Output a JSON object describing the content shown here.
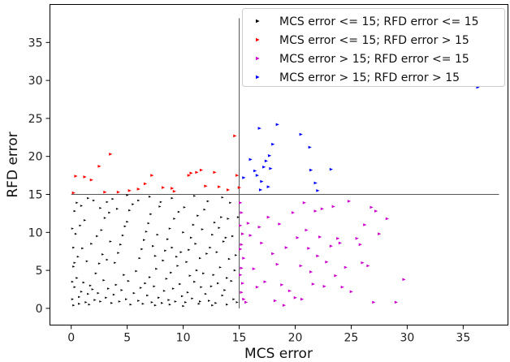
{
  "chart_data": {
    "type": "scatter",
    "title": "",
    "xlabel": "MCS error",
    "ylabel": "RFD error",
    "xlim": [
      -1.9,
      39.0
    ],
    "ylim": [
      -2.2,
      40.0
    ],
    "xticks": [
      "0",
      "5",
      "10",
      "15",
      "20",
      "25",
      "30",
      "35"
    ],
    "yticks": [
      "0",
      "5",
      "10",
      "15",
      "20",
      "25",
      "30",
      "35"
    ],
    "threshold_lines": {
      "vertical": {
        "x": 15,
        "y_range": [
          0,
          38.2
        ]
      },
      "horizontal": {
        "y": 15,
        "x_range": [
          0,
          38.2
        ]
      }
    },
    "grid": false,
    "legend_position": "top-right",
    "series": [
      {
        "name": "MCS error <= 15; RFD error <= 15",
        "color": "#000000",
        "dense": true,
        "points": [
          [
            0.1,
            1.2
          ],
          [
            0.3,
            2.8
          ],
          [
            0.5,
            4.0
          ],
          [
            0.7,
            1.5
          ],
          [
            0.9,
            2.2
          ],
          [
            1.1,
            3.4
          ],
          [
            1.3,
            0.8
          ],
          [
            1.5,
            1.9
          ],
          [
            1.7,
            3.0
          ],
          [
            1.9,
            2.5
          ],
          [
            0.2,
            5.5
          ],
          [
            0.6,
            6.8
          ],
          [
            1.0,
            7.9
          ],
          [
            1.4,
            6.2
          ],
          [
            1.8,
            8.5
          ],
          [
            0.4,
            9.8
          ],
          [
            0.8,
            10.9
          ],
          [
            1.2,
            11.6
          ],
          [
            0.3,
            12.8
          ],
          [
            0.9,
            13.5
          ],
          [
            0.2,
            0.4
          ],
          [
            0.7,
            0.6
          ],
          [
            1.6,
            0.5
          ],
          [
            2.1,
            1.1
          ],
          [
            2.4,
            2.0
          ],
          [
            2.6,
            0.9
          ],
          [
            2.9,
            3.7
          ],
          [
            3.1,
            1.4
          ],
          [
            3.3,
            2.6
          ],
          [
            3.6,
            0.7
          ],
          [
            2.2,
            4.6
          ],
          [
            2.5,
            5.9
          ],
          [
            2.8,
            7.1
          ],
          [
            3.2,
            6.4
          ],
          [
            3.5,
            8.8
          ],
          [
            2.3,
            9.5
          ],
          [
            2.7,
            10.3
          ],
          [
            3.0,
            11.9
          ],
          [
            3.4,
            12.6
          ],
          [
            2.0,
            14.2
          ],
          [
            3.8,
            1.8
          ],
          [
            4.0,
            3.1
          ],
          [
            4.3,
            0.9
          ],
          [
            4.5,
            2.4
          ],
          [
            4.7,
            4.4
          ],
          [
            4.9,
            1.2
          ],
          [
            5.1,
            3.6
          ],
          [
            5.3,
            0.5
          ],
          [
            5.6,
            2.0
          ],
          [
            5.8,
            4.9
          ],
          [
            3.9,
            6.0
          ],
          [
            4.2,
            7.3
          ],
          [
            4.4,
            8.4
          ],
          [
            4.6,
            9.6
          ],
          [
            4.8,
            10.8
          ],
          [
            5.0,
            11.4
          ],
          [
            5.2,
            12.9
          ],
          [
            5.5,
            13.7
          ],
          [
            3.7,
            14.4
          ],
          [
            4.1,
            13.1
          ],
          [
            6.0,
            1.0
          ],
          [
            6.2,
            2.7
          ],
          [
            6.4,
            0.6
          ],
          [
            6.6,
            3.3
          ],
          [
            6.8,
            1.7
          ],
          [
            7.0,
            4.1
          ],
          [
            7.2,
            0.8
          ],
          [
            7.4,
            2.9
          ],
          [
            7.6,
            5.2
          ],
          [
            7.8,
            1.4
          ],
          [
            6.1,
            6.6
          ],
          [
            6.3,
            7.8
          ],
          [
            6.5,
            9.0
          ],
          [
            6.7,
            10.1
          ],
          [
            6.9,
            11.2
          ],
          [
            7.1,
            12.4
          ],
          [
            7.3,
            8.2
          ],
          [
            7.5,
            6.9
          ],
          [
            7.7,
            9.7
          ],
          [
            7.9,
            13.4
          ],
          [
            8.1,
            0.7
          ],
          [
            8.3,
            2.3
          ],
          [
            8.5,
            3.9
          ],
          [
            8.7,
            1.1
          ],
          [
            8.9,
            4.7
          ],
          [
            9.1,
            2.6
          ],
          [
            9.3,
            0.9
          ],
          [
            9.5,
            5.6
          ],
          [
            9.7,
            3.2
          ],
          [
            9.9,
            1.6
          ],
          [
            8.2,
            6.3
          ],
          [
            8.4,
            7.6
          ],
          [
            8.6,
            9.1
          ],
          [
            8.8,
            10.5
          ],
          [
            9.0,
            8.0
          ],
          [
            9.2,
            11.8
          ],
          [
            9.4,
            6.8
          ],
          [
            9.6,
            12.7
          ],
          [
            9.8,
            7.4
          ],
          [
            10.0,
            10.0
          ],
          [
            10.2,
            0.8
          ],
          [
            10.4,
            2.1
          ],
          [
            10.6,
            4.3
          ],
          [
            10.8,
            1.3
          ],
          [
            11.0,
            3.5
          ],
          [
            11.2,
            5.0
          ],
          [
            11.4,
            0.6
          ],
          [
            11.6,
            2.8
          ],
          [
            11.8,
            4.6
          ],
          [
            12.0,
            1.9
          ],
          [
            10.3,
            6.1
          ],
          [
            10.5,
            7.7
          ],
          [
            10.7,
            9.3
          ],
          [
            10.9,
            11.0
          ],
          [
            11.1,
            8.5
          ],
          [
            11.3,
            12.2
          ],
          [
            11.5,
            6.6
          ],
          [
            11.7,
            10.4
          ],
          [
            11.9,
            13.0
          ],
          [
            12.1,
            7.2
          ],
          [
            12.3,
            1.0
          ],
          [
            12.5,
            2.9
          ],
          [
            12.7,
            4.4
          ],
          [
            12.9,
            0.7
          ],
          [
            13.1,
            3.3
          ],
          [
            13.3,
            5.4
          ],
          [
            13.5,
            1.7
          ],
          [
            13.7,
            2.4
          ],
          [
            13.9,
            4.0
          ],
          [
            14.1,
            6.5
          ],
          [
            12.4,
            8.0
          ],
          [
            12.6,
            9.7
          ],
          [
            12.8,
            11.3
          ],
          [
            13.0,
            7.4
          ],
          [
            13.2,
            10.6
          ],
          [
            13.4,
            12.0
          ],
          [
            13.6,
            8.8
          ],
          [
            13.8,
            9.3
          ],
          [
            14.0,
            11.8
          ],
          [
            14.3,
            3.6
          ],
          [
            14.5,
            1.2
          ],
          [
            14.7,
            7.0
          ],
          [
            14.2,
            13.9
          ],
          [
            13.5,
            14.6
          ],
          [
            12.2,
            14.1
          ],
          [
            11.0,
            14.8
          ],
          [
            10.1,
            13.3
          ],
          [
            9.0,
            14.5
          ],
          [
            8.0,
            14.0
          ],
          [
            7.0,
            14.7
          ],
          [
            6.0,
            14.2
          ],
          [
            5.0,
            14.9
          ],
          [
            3.2,
            14.0
          ],
          [
            2.6,
            13.2
          ],
          [
            1.5,
            14.5
          ],
          [
            0.5,
            13.9
          ],
          [
            0.1,
            10.5
          ],
          [
            0.2,
            8.0
          ],
          [
            0.3,
            6.0
          ],
          [
            0.1,
            3.5
          ],
          [
            14.8,
            0.8
          ],
          [
            14.6,
            5.0
          ],
          [
            14.4,
            9.5
          ],
          [
            14.9,
            12.0
          ],
          [
            13.9,
            0.5
          ],
          [
            12.6,
            0.4
          ],
          [
            11.5,
            0.9
          ],
          [
            10.0,
            0.3
          ],
          [
            8.8,
            0.5
          ],
          [
            7.5,
            0.4
          ]
        ]
      },
      {
        "name": "MCS error <= 15; RFD error > 15",
        "color": "#ff0000",
        "points": [
          [
            0.2,
            15.2
          ],
          [
            0.4,
            17.4
          ],
          [
            1.2,
            17.3
          ],
          [
            1.8,
            16.9
          ],
          [
            2.5,
            18.7
          ],
          [
            3.5,
            20.3
          ],
          [
            3.0,
            15.3
          ],
          [
            4.2,
            15.3
          ],
          [
            5.2,
            15.5
          ],
          [
            6.0,
            15.7
          ],
          [
            6.6,
            16.4
          ],
          [
            7.2,
            17.5
          ],
          [
            8.2,
            15.9
          ],
          [
            9.0,
            15.8
          ],
          [
            9.2,
            15.4
          ],
          [
            10.5,
            17.5
          ],
          [
            10.7,
            17.8
          ],
          [
            11.2,
            17.9
          ],
          [
            11.6,
            18.2
          ],
          [
            12.0,
            16.1
          ],
          [
            12.8,
            17.9
          ],
          [
            13.2,
            16.0
          ],
          [
            14.0,
            15.6
          ],
          [
            14.6,
            22.7
          ],
          [
            14.8,
            17.5
          ],
          [
            15.0,
            15.9
          ]
        ]
      },
      {
        "name": "MCS error > 15; RFD error <= 15",
        "color": "#cc00cc",
        "points": [
          [
            15.1,
            13.9
          ],
          [
            15.2,
            12.6
          ],
          [
            15.1,
            10.9
          ],
          [
            15.3,
            9.8
          ],
          [
            15.2,
            8.4
          ],
          [
            15.1,
            7.8
          ],
          [
            15.4,
            6.6
          ],
          [
            15.2,
            5.3
          ],
          [
            15.1,
            4.4
          ],
          [
            15.3,
            3.3
          ],
          [
            15.2,
            2.1
          ],
          [
            15.4,
            1.2
          ],
          [
            15.6,
            0.8
          ],
          [
            15.8,
            11.2
          ],
          [
            16.0,
            9.6
          ],
          [
            16.3,
            5.2
          ],
          [
            16.6,
            2.8
          ],
          [
            16.8,
            10.7
          ],
          [
            17.0,
            8.6
          ],
          [
            17.3,
            3.5
          ],
          [
            17.6,
            12.0
          ],
          [
            18.0,
            7.2
          ],
          [
            18.2,
            1.0
          ],
          [
            18.4,
            5.8
          ],
          [
            18.6,
            11.1
          ],
          [
            18.8,
            3.1
          ],
          [
            19.0,
            0.4
          ],
          [
            19.2,
            8.0
          ],
          [
            19.5,
            2.3
          ],
          [
            19.8,
            12.6
          ],
          [
            20.0,
            1.4
          ],
          [
            20.2,
            9.3
          ],
          [
            20.5,
            5.6
          ],
          [
            20.6,
            1.2
          ],
          [
            20.8,
            13.9
          ],
          [
            21.0,
            10.3
          ],
          [
            21.2,
            7.9
          ],
          [
            21.4,
            4.8
          ],
          [
            21.6,
            3.2
          ],
          [
            21.8,
            12.8
          ],
          [
            22.0,
            6.9
          ],
          [
            22.2,
            9.4
          ],
          [
            22.4,
            13.1
          ],
          [
            22.6,
            2.9
          ],
          [
            22.8,
            6.1
          ],
          [
            23.2,
            8.2
          ],
          [
            23.4,
            13.4
          ],
          [
            23.6,
            4.3
          ],
          [
            23.8,
            9.2
          ],
          [
            24.0,
            8.6
          ],
          [
            24.2,
            2.8
          ],
          [
            24.5,
            5.4
          ],
          [
            24.8,
            14.1
          ],
          [
            25.0,
            2.2
          ],
          [
            25.5,
            9.2
          ],
          [
            25.8,
            8.4
          ],
          [
            26.0,
            6.0
          ],
          [
            26.2,
            11.0
          ],
          [
            26.5,
            5.6
          ],
          [
            26.8,
            13.3
          ],
          [
            27.0,
            0.8
          ],
          [
            27.2,
            12.8
          ],
          [
            27.5,
            9.8
          ],
          [
            28.2,
            11.8
          ],
          [
            29.0,
            0.8
          ],
          [
            29.7,
            3.8
          ]
        ]
      },
      {
        "name": "MCS error > 15; RFD error > 15",
        "color": "#0000ff",
        "points": [
          [
            15.4,
            17.2
          ],
          [
            16.0,
            19.6
          ],
          [
            16.4,
            18.1
          ],
          [
            16.6,
            17.5
          ],
          [
            16.8,
            23.7
          ],
          [
            16.9,
            15.6
          ],
          [
            17.0,
            16.7
          ],
          [
            17.2,
            18.6
          ],
          [
            17.4,
            19.4
          ],
          [
            17.6,
            16.0
          ],
          [
            17.7,
            20.1
          ],
          [
            17.8,
            18.4
          ],
          [
            18.0,
            21.6
          ],
          [
            18.4,
            24.2
          ],
          [
            20.5,
            22.9
          ],
          [
            21.3,
            21.2
          ],
          [
            21.4,
            18.2
          ],
          [
            21.8,
            16.5
          ],
          [
            22.0,
            15.5
          ],
          [
            23.2,
            18.3
          ],
          [
            36.3,
            29.1
          ]
        ]
      }
    ]
  }
}
